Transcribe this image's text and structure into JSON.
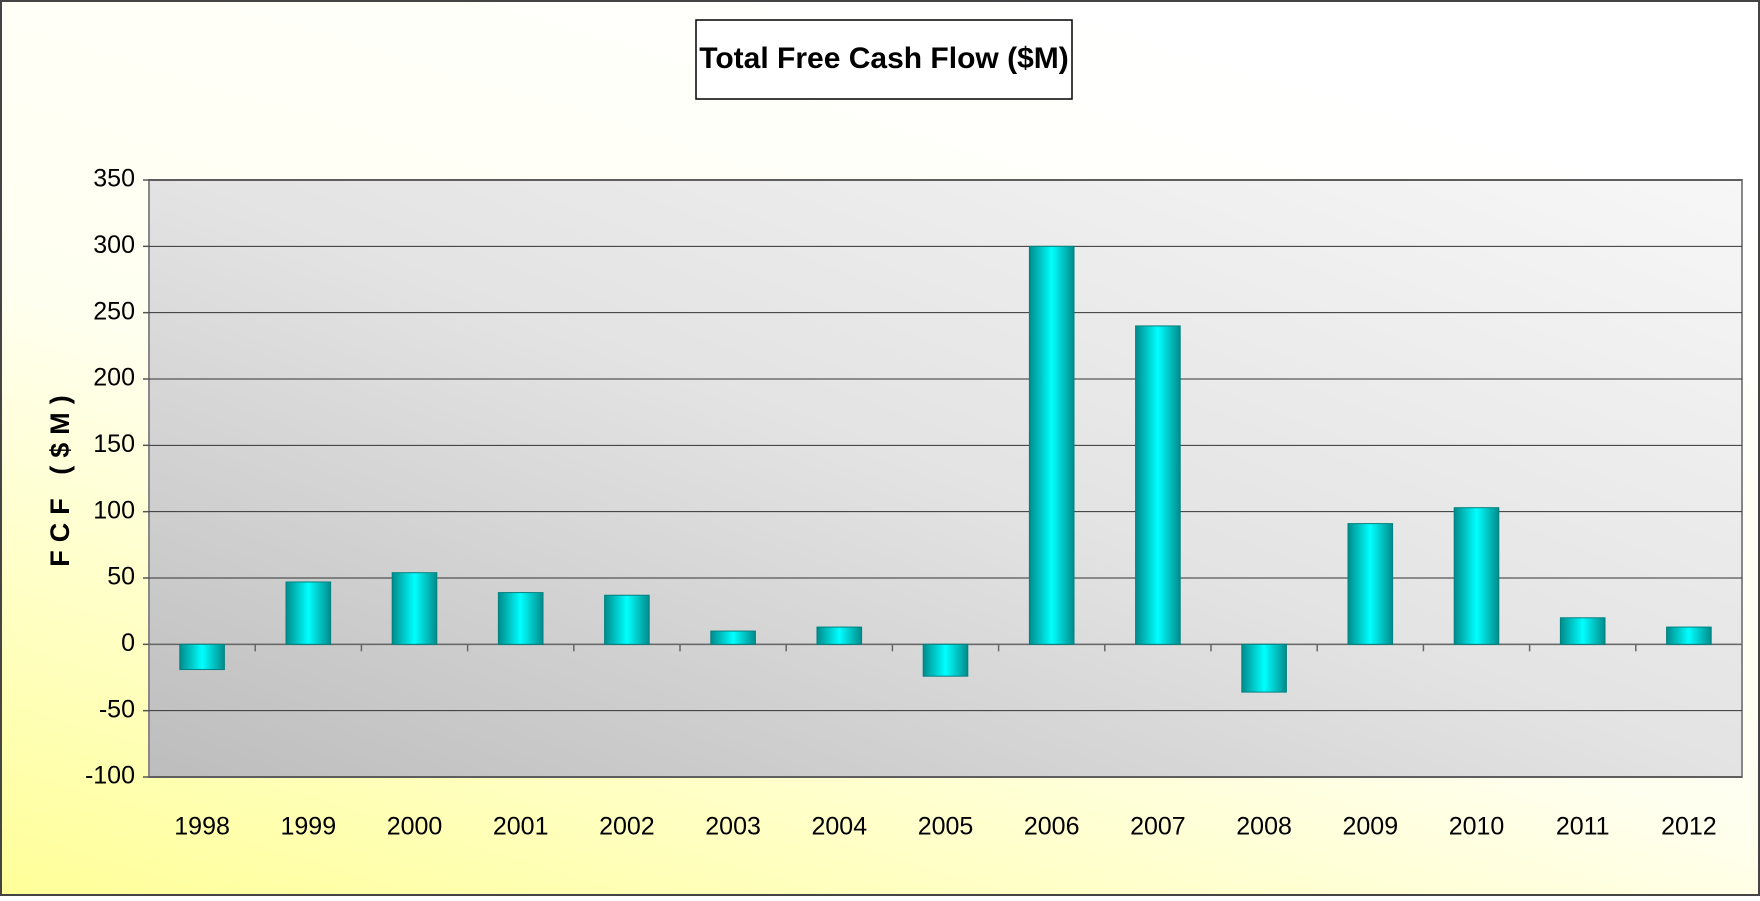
{
  "chart_data": {
    "type": "bar",
    "title": "Total Free Cash Flow ($M)",
    "y_label": "FCF ($M)",
    "categories": [
      "1998",
      "1999",
      "2000",
      "2001",
      "2002",
      "2003",
      "2004",
      "2005",
      "2006",
      "2007",
      "2008",
      "2009",
      "2010",
      "2011",
      "2012"
    ],
    "values": [
      -19,
      47,
      54,
      39,
      37,
      10,
      13,
      -24,
      300,
      240,
      -36,
      91,
      103,
      20,
      13
    ],
    "color": "#00e5e5",
    "ylim": [
      -100,
      350
    ],
    "yticks": [
      -100,
      -50,
      0,
      50,
      100,
      150,
      200,
      250,
      300,
      350
    ],
    "grid": true
  }
}
